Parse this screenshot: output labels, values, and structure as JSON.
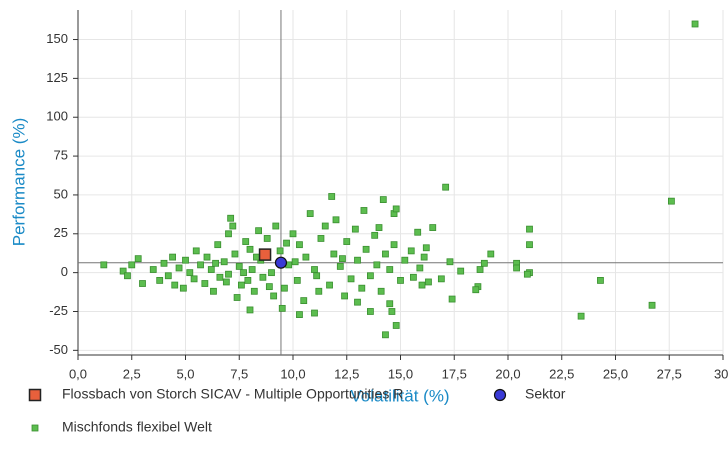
{
  "chart_data": {
    "type": "scatter",
    "x_label": "Volatilität (%)",
    "y_label": "Performance (%)",
    "xlim": [
      0,
      30
    ],
    "ylim": [
      -53,
      169
    ],
    "xticks": [
      {
        "value": 0,
        "label": "0,0"
      },
      {
        "value": 2.5,
        "label": "2,5"
      },
      {
        "value": 5,
        "label": "5,0"
      },
      {
        "value": 7.5,
        "label": "7,5"
      },
      {
        "value": 10,
        "label": "10,0"
      },
      {
        "value": 12.5,
        "label": "12,5"
      },
      {
        "value": 15,
        "label": "15,0"
      },
      {
        "value": 17.5,
        "label": "17,5"
      },
      {
        "value": 20,
        "label": "20,0"
      },
      {
        "value": 22.5,
        "label": "22,5"
      },
      {
        "value": 25,
        "label": "25,0"
      },
      {
        "value": 27.5,
        "label": "27,5"
      },
      {
        "value": 30,
        "label": "30,"
      }
    ],
    "yticks": [
      -50,
      -25,
      0,
      25,
      50,
      75,
      100,
      125,
      150
    ],
    "grid": true,
    "series": [
      {
        "name": "Mischfonds flexibel  Welt",
        "color": "#5cbd4f",
        "marker": "small-square",
        "x": [
          28.7,
          27.6,
          26.7,
          24.3,
          23.4,
          21.0,
          21.0,
          21.0,
          20.9,
          20.4,
          20.4,
          19.2,
          18.9,
          18.6,
          18.5,
          18.7,
          17.8,
          17.4,
          17.1,
          17.3,
          16.9,
          16.2,
          16.1,
          16.5,
          16.3,
          15.6,
          15.8,
          14.7,
          14.8,
          14.2,
          14.0,
          13.3,
          11.8,
          14.8,
          14.3,
          14.6,
          14.5,
          13.6,
          13.0,
          10.3,
          9.5,
          8.0,
          11.0,
          1.2,
          2.1,
          2.3,
          2.8,
          3.0,
          2.5,
          3.5,
          3.8,
          4.0,
          4.2,
          4.4,
          4.5,
          4.7,
          4.9,
          5.0,
          5.2,
          5.4,
          5.5,
          5.7,
          5.9,
          6.0,
          6.2,
          6.3,
          6.5,
          6.6,
          6.8,
          7.0,
          7.0,
          7.1,
          7.2,
          7.3,
          7.4,
          7.5,
          7.6,
          7.8,
          7.9,
          8.0,
          8.1,
          8.2,
          8.4,
          8.5,
          8.6,
          8.8,
          9.0,
          9.1,
          9.2,
          9.4,
          9.6,
          9.8,
          10.0,
          10.2,
          10.3,
          10.5,
          10.6,
          10.8,
          11.0,
          11.2,
          11.3,
          11.5,
          11.7,
          11.9,
          12.0,
          12.2,
          12.4,
          12.5,
          12.7,
          12.9,
          13.0,
          13.2,
          13.4,
          13.6,
          13.8,
          13.9,
          14.1,
          14.3,
          14.5,
          14.7,
          15.0,
          15.2,
          15.5,
          15.9,
          16.0,
          6.4,
          7.7,
          8.9,
          10.1,
          11.1,
          12.3,
          9.7,
          8.3,
          6.9
        ],
        "values": [
          160,
          46,
          -21,
          -5,
          -28,
          28,
          18,
          0,
          -1,
          6,
          3,
          12,
          6,
          -9,
          -11,
          2,
          1,
          -17,
          55,
          7,
          -4,
          16,
          10,
          29,
          -6,
          -3,
          26,
          38,
          41,
          47,
          29,
          40,
          49,
          -34,
          -40,
          -25,
          -20,
          -25,
          -19,
          -27,
          -23,
          -24,
          -26,
          5,
          1,
          -2,
          9,
          -7,
          5,
          2,
          -5,
          6,
          -2,
          10,
          -8,
          3,
          -10,
          8,
          0,
          -4,
          14,
          5,
          -7,
          10,
          2,
          -12,
          18,
          -3,
          7,
          25,
          -1,
          35,
          30,
          12,
          -16,
          4,
          -8,
          20,
          -5,
          15,
          2,
          -12,
          27,
          8,
          -3,
          22,
          0,
          -15,
          30,
          14,
          -10,
          5,
          25,
          -5,
          18,
          -18,
          10,
          38,
          2,
          -12,
          22,
          30,
          -8,
          12,
          34,
          4,
          -15,
          20,
          -4,
          28,
          8,
          -10,
          15,
          -2,
          24,
          5,
          -12,
          12,
          2,
          18,
          -5,
          8,
          14,
          3,
          -8,
          6,
          0,
          -9,
          7,
          -2,
          9,
          19,
          10,
          -6
        ]
      },
      {
        "name": "Flossbach von Storch SICAV - Multiple Opportunities R",
        "color": "#e8603c",
        "marker": "square",
        "x": [
          8.7
        ],
        "values": [
          11.6
        ]
      },
      {
        "name": "Sektor",
        "color": "#3a3ad6",
        "marker": "circle",
        "x": [
          9.44
        ],
        "values": [
          6.4
        ]
      }
    ]
  }
}
